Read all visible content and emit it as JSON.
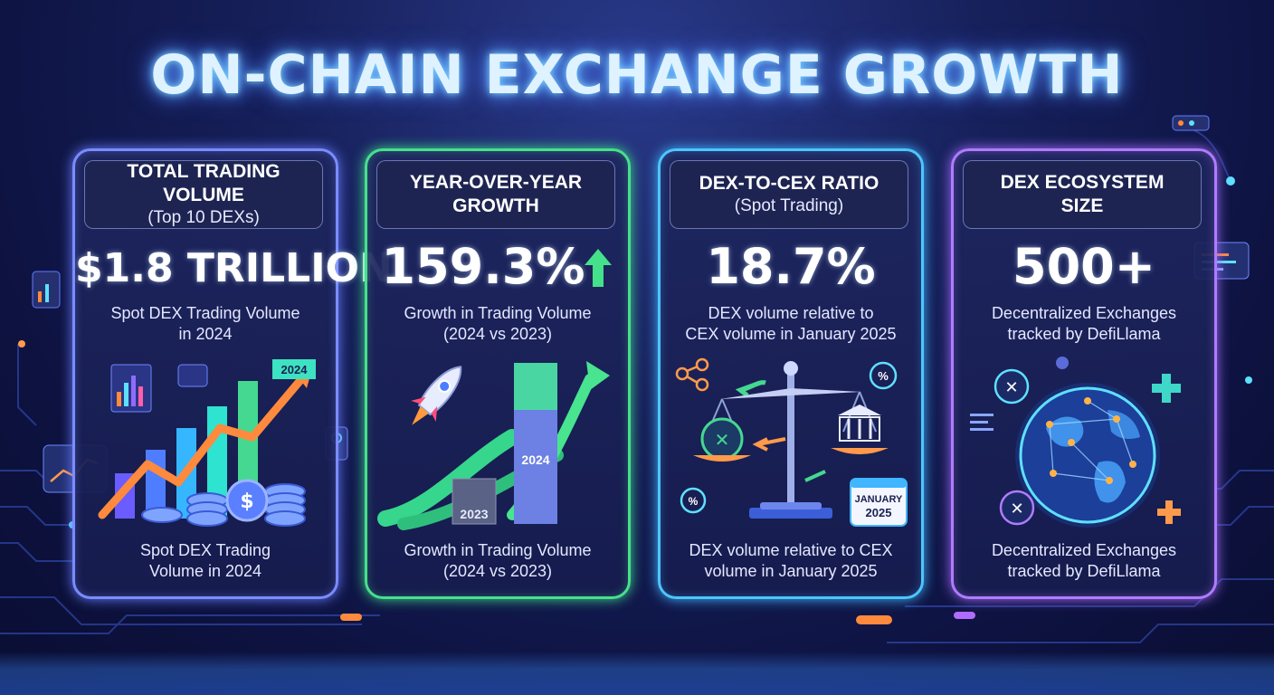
{
  "title": "ON-CHAIN EXCHANGE GROWTH",
  "colors": {
    "card1": "#7b8cff",
    "card2": "#47e08c",
    "card3": "#4cc6ff",
    "card4": "#b07bff"
  },
  "cards": [
    {
      "header_line1": "TOTAL TRADING VOLUME",
      "header_line2": "(Top 10 DEXs)",
      "value": "$1.8 TRILLION",
      "subtitle_line1": "Spot DEX Trading Volume",
      "subtitle_line2": "in 2024",
      "badge": "2024",
      "footer_line1": "Spot DEX Trading",
      "footer_line2": "Volume in 2024",
      "icon": "growth-chart-coins-icon"
    },
    {
      "header_line1": "YEAR-OVER-YEAR",
      "header_line2": "GROWTH",
      "value": "159.3%",
      "subtitle_line1": "Growth in Trading Volume",
      "subtitle_line2": "(2024 vs 2023)",
      "bar_2023": "2023",
      "bar_2024": "2024",
      "footer_line1": "Growth in Trading Volume",
      "footer_line2": "(2024 vs 2023)",
      "icon": "rocket-icon"
    },
    {
      "header_line1": "DEX-TO-CEX RATIO",
      "header_line2": "(Spot Trading)",
      "value": "18.7%",
      "subtitle_line1": "DEX volume relative to",
      "subtitle_line2": "CEX volume in January 2025",
      "calendar_month": "JANUARY",
      "calendar_year": "2025",
      "footer_line1": "DEX volume relative to CEX",
      "footer_line2": "volume in January 2025",
      "icon": "balance-scale-icon"
    },
    {
      "header_line1": "DEX ECOSYSTEM",
      "header_line2": "SIZE",
      "value": "500+",
      "subtitle_line1": "Decentralized Exchanges",
      "subtitle_line2": "tracked by DefiLlama",
      "footer_line1": "Decentralized Exchanges",
      "footer_line2": "tracked by DefiLlama",
      "icon": "globe-network-icon"
    }
  ]
}
